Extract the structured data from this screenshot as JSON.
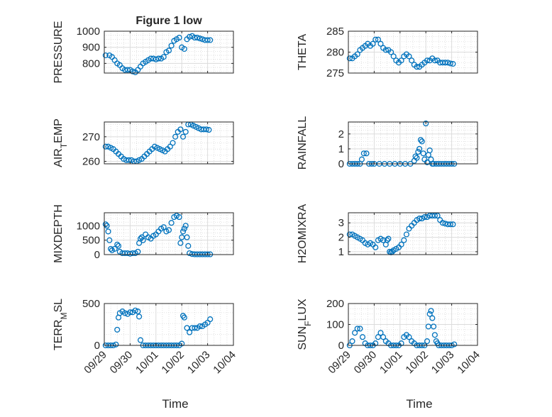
{
  "window": {
    "title": "Figure 1 low"
  },
  "chart_data": [
    {
      "type": "scatter",
      "title": "Figure 1 low",
      "ylabel": "PRESSURE",
      "ylim": [
        740,
        1000
      ],
      "yticks": [
        800,
        900,
        1000
      ],
      "xlim": [
        0,
        5
      ],
      "xticks": [
        0,
        1,
        2,
        3,
        4,
        5
      ],
      "xticklabels": [],
      "marker": "open-circle",
      "color": "#0072BD",
      "grid": true,
      "x": [
        0.05,
        0.2,
        0.3,
        0.4,
        0.5,
        0.6,
        0.7,
        0.8,
        0.9,
        1.0,
        1.1,
        1.2,
        1.3,
        1.4,
        1.5,
        1.6,
        1.7,
        1.8,
        1.9,
        2.0,
        2.1,
        2.2,
        2.3,
        2.4,
        2.5,
        2.6,
        2.7,
        2.8,
        2.9,
        3.0,
        3.1,
        3.2,
        3.3,
        3.4,
        3.5,
        3.6,
        3.7,
        3.8,
        3.9,
        4.0,
        4.1
      ],
      "y": [
        850,
        850,
        840,
        820,
        800,
        790,
        770,
        760,
        760,
        760,
        750,
        745,
        760,
        780,
        800,
        810,
        820,
        830,
        830,
        825,
        830,
        830,
        840,
        870,
        880,
        910,
        940,
        950,
        960,
        900,
        890,
        950,
        965,
        970,
        960,
        960,
        955,
        950,
        945,
        945,
        945
      ]
    },
    {
      "type": "scatter",
      "ylabel": "THETA",
      "ylim": [
        275,
        285
      ],
      "yticks": [
        275,
        280,
        285
      ],
      "xlim": [
        0,
        5
      ],
      "xticks": [
        0,
        1,
        2,
        3,
        4,
        5
      ],
      "xticklabels": [],
      "marker": "open-circle",
      "color": "#0072BD",
      "grid": true,
      "x": [
        0.05,
        0.15,
        0.25,
        0.35,
        0.45,
        0.55,
        0.65,
        0.75,
        0.85,
        0.95,
        1.05,
        1.15,
        1.25,
        1.35,
        1.45,
        1.55,
        1.65,
        1.75,
        1.85,
        1.95,
        2.05,
        2.15,
        2.25,
        2.35,
        2.45,
        2.55,
        2.65,
        2.75,
        2.85,
        2.95,
        3.05,
        3.15,
        3.25,
        3.35,
        3.45,
        3.55,
        3.65,
        3.75,
        3.85,
        3.95,
        4.05
      ],
      "y": [
        278.5,
        278.5,
        279,
        279.5,
        280.5,
        281,
        281.5,
        282,
        281.5,
        282,
        283,
        283,
        282,
        281,
        280.5,
        280.5,
        280,
        279,
        278,
        277.5,
        278,
        279,
        279.5,
        279,
        278,
        277,
        276.5,
        276.5,
        277,
        277.5,
        278,
        278,
        278.5,
        278,
        278,
        277.5,
        277.5,
        277.5,
        277.5,
        277.3,
        277.2
      ]
    },
    {
      "type": "scatter",
      "ylabel": "AIR_TEMP",
      "ylim": [
        259,
        276
      ],
      "yticks": [
        260,
        270
      ],
      "xlim": [
        0,
        5
      ],
      "xticks": [
        0,
        1,
        2,
        3,
        4,
        5
      ],
      "xticklabels": [],
      "marker": "open-circle",
      "color": "#0072BD",
      "grid": true,
      "x": [
        0.05,
        0.15,
        0.25,
        0.35,
        0.45,
        0.55,
        0.65,
        0.75,
        0.85,
        0.95,
        1.05,
        1.15,
        1.25,
        1.35,
        1.45,
        1.55,
        1.65,
        1.75,
        1.85,
        1.95,
        2.05,
        2.15,
        2.25,
        2.35,
        2.45,
        2.55,
        2.65,
        2.75,
        2.85,
        2.95,
        3.05,
        3.15,
        3.25,
        3.35,
        3.45,
        3.55,
        3.65,
        3.75,
        3.85,
        3.95,
        4.05
      ],
      "y": [
        266,
        266,
        265.5,
        265,
        264,
        263,
        262,
        261,
        260.5,
        260.5,
        260.5,
        260,
        260,
        260.5,
        261,
        262,
        263,
        264,
        265,
        266,
        265.5,
        265,
        264.5,
        264,
        265,
        266,
        267.5,
        270,
        272,
        273,
        270,
        272,
        275,
        275,
        274.5,
        274,
        273.5,
        273,
        273,
        273,
        272.8
      ]
    },
    {
      "type": "scatter",
      "ylabel": "RAINFALL",
      "ylim": [
        0,
        2.8
      ],
      "yticks": [
        0,
        1,
        2
      ],
      "xlim": [
        0,
        5
      ],
      "xticks": [
        0,
        1,
        2,
        3,
        4,
        5
      ],
      "xticklabels": [],
      "marker": "open-circle",
      "color": "#0072BD",
      "grid": true,
      "x": [
        0.05,
        0.15,
        0.25,
        0.35,
        0.45,
        0.52,
        0.6,
        0.7,
        0.8,
        0.9,
        1.0,
        1.2,
        1.4,
        1.6,
        1.8,
        2.0,
        2.2,
        2.4,
        2.55,
        2.6,
        2.65,
        2.7,
        2.75,
        2.8,
        2.85,
        2.9,
        2.95,
        3.0,
        3.05,
        3.1,
        3.15,
        3.2,
        3.25,
        3.3,
        3.4,
        3.5,
        3.6,
        3.7,
        3.8,
        3.9,
        4.0,
        4.1
      ],
      "y": [
        0,
        0,
        0,
        0,
        0,
        0.3,
        0.7,
        0.7,
        0,
        0,
        0,
        0,
        0,
        0,
        0,
        0,
        0,
        0,
        0.2,
        0.5,
        0.4,
        0.8,
        1.0,
        1.6,
        1.5,
        0.7,
        0.3,
        2.7,
        0.1,
        0.6,
        0.9,
        0.3,
        0,
        0,
        0,
        0,
        0,
        0,
        0,
        0,
        0,
        0
      ]
    },
    {
      "type": "scatter",
      "ylabel": "MIXDEPTH",
      "ylim": [
        0,
        1450
      ],
      "yticks": [
        0,
        500,
        1000
      ],
      "xlim": [
        0,
        5
      ],
      "xticks": [
        0,
        1,
        2,
        3,
        4,
        5
      ],
      "xticklabels": [],
      "marker": "open-circle",
      "color": "#0072BD",
      "grid": true,
      "x": [
        0.05,
        0.1,
        0.15,
        0.2,
        0.25,
        0.3,
        0.4,
        0.5,
        0.55,
        0.6,
        0.7,
        0.8,
        0.9,
        1.0,
        1.1,
        1.2,
        1.3,
        1.35,
        1.4,
        1.45,
        1.5,
        1.6,
        1.7,
        1.8,
        1.9,
        2.0,
        2.1,
        2.2,
        2.3,
        2.4,
        2.5,
        2.6,
        2.7,
        2.8,
        2.9,
        2.95,
        3.0,
        3.05,
        3.1,
        3.15,
        3.2,
        3.25,
        3.3,
        3.4,
        3.5,
        3.6,
        3.7,
        3.8,
        3.9,
        4.0,
        4.1
      ],
      "y": [
        1050,
        1000,
        800,
        500,
        200,
        150,
        200,
        350,
        300,
        100,
        50,
        50,
        50,
        30,
        50,
        50,
        100,
        400,
        550,
        600,
        500,
        700,
        600,
        550,
        650,
        700,
        800,
        900,
        950,
        800,
        850,
        1100,
        1300,
        1350,
        1300,
        400,
        600,
        800,
        900,
        1000,
        600,
        300,
        50,
        20,
        10,
        10,
        10,
        10,
        10,
        10,
        10
      ]
    },
    {
      "type": "scatter",
      "ylabel": "H2OMIXRA",
      "ylim": [
        0.8,
        3.7
      ],
      "yticks": [
        1,
        2,
        3
      ],
      "xlim": [
        0,
        5
      ],
      "xticks": [
        0,
        1,
        2,
        3,
        4,
        5
      ],
      "xticklabels": [],
      "marker": "open-circle",
      "color": "#0072BD",
      "grid": true,
      "x": [
        0.05,
        0.15,
        0.25,
        0.35,
        0.45,
        0.55,
        0.65,
        0.75,
        0.85,
        0.95,
        1.05,
        1.15,
        1.25,
        1.35,
        1.45,
        1.5,
        1.55,
        1.6,
        1.65,
        1.7,
        1.75,
        1.85,
        1.95,
        2.05,
        2.15,
        2.25,
        2.35,
        2.45,
        2.55,
        2.65,
        2.75,
        2.85,
        2.95,
        3.05,
        3.15,
        3.25,
        3.35,
        3.45,
        3.55,
        3.65,
        3.75,
        3.85,
        3.95,
        4.05
      ],
      "y": [
        2.2,
        2.2,
        2.1,
        2.0,
        1.9,
        1.8,
        1.6,
        1.5,
        1.6,
        1.5,
        1.3,
        1.8,
        1.9,
        1.8,
        1.5,
        1.8,
        1.9,
        1.0,
        0.95,
        1.0,
        1.1,
        1.2,
        1.3,
        1.5,
        1.8,
        2.2,
        2.6,
        2.8,
        3.0,
        3.2,
        3.3,
        3.3,
        3.4,
        3.4,
        3.5,
        3.5,
        3.5,
        3.5,
        3.2,
        3.0,
        2.95,
        2.9,
        2.9,
        2.9
      ]
    },
    {
      "type": "scatter",
      "ylabel": "TERR_MSL",
      "ylim": [
        0,
        480
      ],
      "yticks": [
        0,
        500
      ],
      "xlim": [
        0,
        5
      ],
      "xticks": [
        0,
        1,
        2,
        3,
        4,
        5
      ],
      "xticklabels": [
        "09/29",
        "09/30",
        "10/01",
        "10/02",
        "10/03",
        "10/04"
      ],
      "xlabel": "Time",
      "marker": "open-circle",
      "color": "#0072BD",
      "grid": true,
      "x": [
        0.05,
        0.15,
        0.25,
        0.35,
        0.45,
        0.5,
        0.55,
        0.6,
        0.7,
        0.8,
        0.9,
        1.0,
        1.1,
        1.2,
        1.3,
        1.35,
        1.4,
        1.5,
        1.6,
        1.7,
        1.8,
        1.9,
        2.0,
        2.1,
        2.2,
        2.3,
        2.4,
        2.5,
        2.6,
        2.7,
        2.8,
        2.9,
        3.0,
        3.05,
        3.1,
        3.2,
        3.3,
        3.4,
        3.5,
        3.6,
        3.7,
        3.8,
        3.9,
        4.0,
        4.1
      ],
      "y": [
        0,
        0,
        0,
        0,
        10,
        180,
        320,
        370,
        390,
        370,
        360,
        380,
        380,
        400,
        390,
        330,
        60,
        0,
        0,
        0,
        0,
        0,
        0,
        0,
        0,
        0,
        0,
        0,
        0,
        0,
        0,
        0,
        20,
        340,
        320,
        200,
        150,
        200,
        200,
        200,
        220,
        220,
        240,
        260,
        300
      ]
    },
    {
      "type": "scatter",
      "ylabel": "SUN_FLUX",
      "ylim": [
        0,
        200
      ],
      "yticks": [
        0,
        100,
        200
      ],
      "xlim": [
        0,
        5
      ],
      "xticks": [
        0,
        1,
        2,
        3,
        4,
        5
      ],
      "xticklabels": [
        "09/29",
        "09/30",
        "10/01",
        "10/02",
        "10/03",
        "10/04"
      ],
      "xlabel": "Time",
      "marker": "open-circle",
      "color": "#0072BD",
      "grid": true,
      "x": [
        0.05,
        0.15,
        0.25,
        0.35,
        0.45,
        0.55,
        0.65,
        0.75,
        0.85,
        0.95,
        1.05,
        1.15,
        1.25,
        1.35,
        1.45,
        1.55,
        1.65,
        1.75,
        1.85,
        1.95,
        2.05,
        2.15,
        2.25,
        2.35,
        2.45,
        2.55,
        2.65,
        2.75,
        2.85,
        2.95,
        3.05,
        3.1,
        3.15,
        3.2,
        3.25,
        3.3,
        3.35,
        3.4,
        3.45,
        3.5,
        3.6,
        3.7,
        3.8,
        3.9,
        4.0,
        4.1
      ],
      "y": [
        0,
        20,
        60,
        80,
        80,
        40,
        10,
        0,
        0,
        0,
        10,
        40,
        60,
        40,
        20,
        10,
        0,
        0,
        0,
        0,
        10,
        40,
        50,
        40,
        20,
        10,
        0,
        0,
        0,
        0,
        20,
        90,
        150,
        165,
        130,
        90,
        50,
        20,
        10,
        0,
        0,
        0,
        0,
        0,
        0,
        5
      ]
    }
  ]
}
